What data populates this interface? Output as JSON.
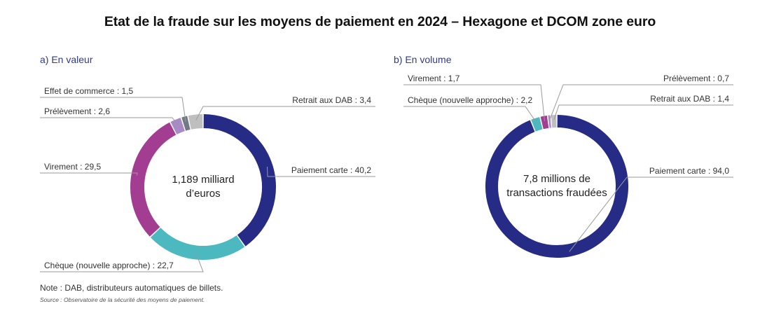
{
  "title": "Etat de la fraude sur les moyens de paiement en 2024 – Hexagone et DCOM zone euro",
  "panels": {
    "a": {
      "label": "a)  En valeur"
    },
    "b": {
      "label": "b)  En volume"
    }
  },
  "note": "Note : DAB, distributeurs automatiques de billets.",
  "source": "Source : Observatoire de la sécurité des moyens de paiement.",
  "colors": {
    "paiement_carte": "#262b86",
    "cheque": "#4cb8c0",
    "virement": "#a23d92",
    "prelevement": "#a78ac6",
    "effet_de_commerce": "#6f7a84",
    "retrait_dab": "#bfbfbf",
    "leader_line": "#9a9a9a"
  },
  "chart_data": [
    {
      "type": "pie",
      "id": "a",
      "title": "a)  En valeur",
      "center_text": [
        "1,189 milliard",
        "d’euros"
      ],
      "slices": [
        {
          "key": "paiement_carte",
          "value": 40.2,
          "label": "Paiement carte : 40,2"
        },
        {
          "key": "cheque",
          "value": 22.7,
          "label": "Chèque (nouvelle approche) : 22,7"
        },
        {
          "key": "virement",
          "value": 29.5,
          "label": "Virement : 29,5"
        },
        {
          "key": "prelevement",
          "value": 2.6,
          "label": "Prélèvement : 2,6"
        },
        {
          "key": "effet_de_commerce",
          "value": 1.5,
          "label": "Effet de commerce : 1,5"
        },
        {
          "key": "retrait_dab",
          "value": 3.4,
          "label": "Retrait aux DAB : 3,4"
        }
      ]
    },
    {
      "type": "pie",
      "id": "b",
      "title": "b)  En volume",
      "center_text": [
        "7,8 millions de",
        "transactions fraudées"
      ],
      "slices": [
        {
          "key": "paiement_carte",
          "value": 94.0,
          "label": "Paiement carte : 94,0"
        },
        {
          "key": "cheque",
          "value": 2.2,
          "label": "Chèque (nouvelle approche) : 2,2"
        },
        {
          "key": "virement",
          "value": 1.7,
          "label": "Virement : 1,7"
        },
        {
          "key": "prelevement",
          "value": 0.7,
          "label": "Prélèvement : 0,7"
        },
        {
          "key": "retrait_dab",
          "value": 1.4,
          "label": "Retrait aux DAB : 1,4"
        }
      ]
    }
  ]
}
